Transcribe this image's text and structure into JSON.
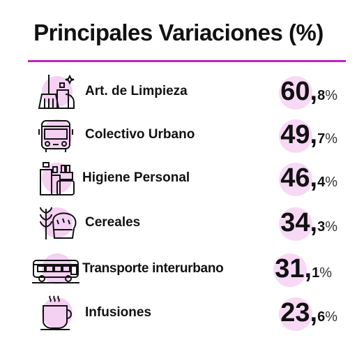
{
  "title": "Principales Variaciones (%)",
  "accent_color": "#c21fc4",
  "items": [
    {
      "label": "Art. de Limpieza",
      "int": "60,",
      "dec": "8",
      "pct": "%",
      "icon": "cleaning-supplies-icon"
    },
    {
      "label": "Colectivo Urbano",
      "int": "49,",
      "dec": "7",
      "pct": "%",
      "icon": "bus-icon"
    },
    {
      "label": "Higiene Personal",
      "int": "46,",
      "dec": "4",
      "pct": "%",
      "icon": "hygiene-products-icon"
    },
    {
      "label": "Cereales",
      "int": "34,",
      "dec": "3",
      "pct": "%",
      "icon": "bread-wheat-icon"
    },
    {
      "label": "Transporte interurbano",
      "int": "31,",
      "dec": "1",
      "pct": "%",
      "icon": "coach-bus-icon"
    },
    {
      "label": "Infusiones",
      "int": "23,",
      "dec": "6",
      "pct": "%",
      "icon": "hot-cup-icon"
    }
  ]
}
